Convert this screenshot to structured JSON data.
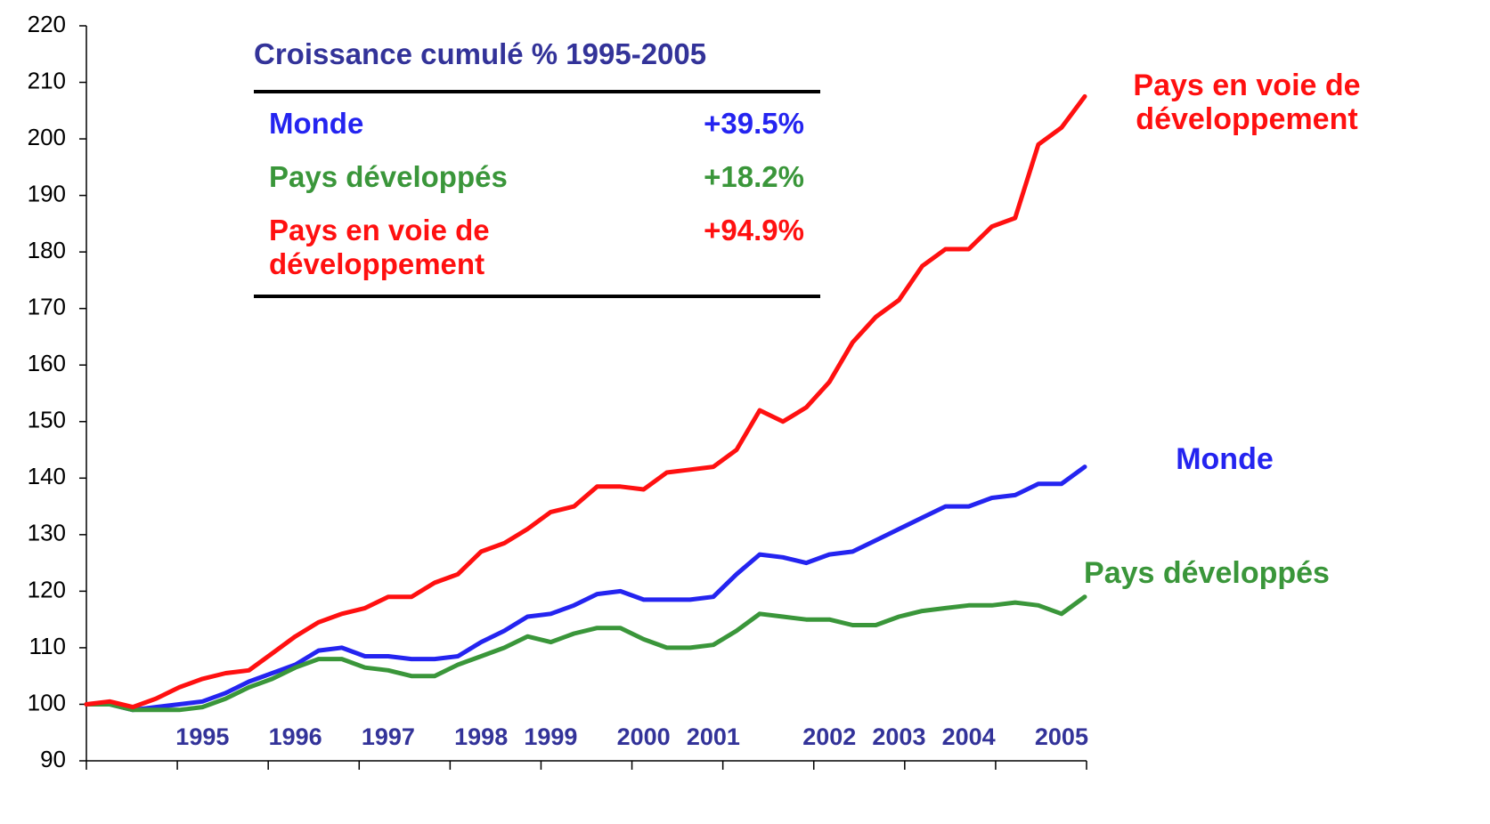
{
  "chart_data": {
    "type": "line",
    "categories": [
      null,
      null,
      null,
      null,
      null,
      "1995",
      null,
      null,
      null,
      "1996",
      null,
      null,
      null,
      "1997",
      null,
      null,
      null,
      "1998",
      null,
      null,
      "1999",
      null,
      null,
      null,
      "2000",
      null,
      null,
      "2001",
      null,
      null,
      null,
      null,
      "2002",
      null,
      null,
      "2003",
      null,
      null,
      "2004",
      null,
      null,
      null,
      "2005",
      null
    ],
    "series": [
      {
        "name": "Monde",
        "color": "#2424f0",
        "values": [
          100,
          100,
          99,
          99.5,
          100,
          100.5,
          102,
          104,
          105.5,
          107,
          109.5,
          110,
          108.5,
          108.5,
          108,
          108,
          108.5,
          111,
          113,
          115.5,
          116,
          117.5,
          119.5,
          120,
          118.5,
          118.5,
          118.5,
          119,
          123,
          126.5,
          126,
          125,
          126.5,
          127,
          129,
          131,
          133,
          135,
          135,
          136.5,
          137,
          139,
          139,
          142
        ]
      },
      {
        "name": "Pays développés",
        "color": "#3a963a",
        "values": [
          100,
          100,
          99,
          99,
          99,
          99.5,
          101,
          103,
          104.5,
          106.5,
          108,
          108,
          106.5,
          106,
          105,
          105,
          107,
          108.5,
          110,
          112,
          111,
          112.5,
          113.5,
          113.5,
          111.5,
          110,
          110,
          110.5,
          113,
          116,
          115.5,
          115,
          115,
          114,
          114,
          115.5,
          116.5,
          117,
          117.5,
          117.5,
          118,
          117.5,
          116,
          119
        ]
      },
      {
        "name": "Pays en voie de développement",
        "color": "#ff1010",
        "values": [
          100,
          100.5,
          99.5,
          101,
          103,
          104.5,
          105.5,
          106,
          109,
          112,
          114.5,
          116,
          117,
          119,
          119,
          121.5,
          123,
          127,
          128.5,
          131,
          134,
          135,
          138.5,
          138.5,
          138,
          141,
          141.5,
          142,
          145,
          152,
          150,
          152.5,
          157,
          164,
          168.5,
          171.5,
          177.5,
          180.5,
          180.5,
          184.5,
          186,
          199,
          202,
          207.5
        ]
      }
    ],
    "ylim": [
      90,
      220
    ],
    "yticks": [
      90,
      100,
      110,
      120,
      130,
      140,
      150,
      160,
      170,
      180,
      190,
      200,
      210,
      220
    ],
    "table": {
      "title": "Croissance cumulé % 1995-2005",
      "rows": [
        {
          "label": "Monde",
          "value": "+39.5%"
        },
        {
          "label": "Pays développés",
          "value": "+18.2%"
        },
        {
          "label": "Pays en voie de développement",
          "value": "+94.9%"
        }
      ]
    }
  }
}
